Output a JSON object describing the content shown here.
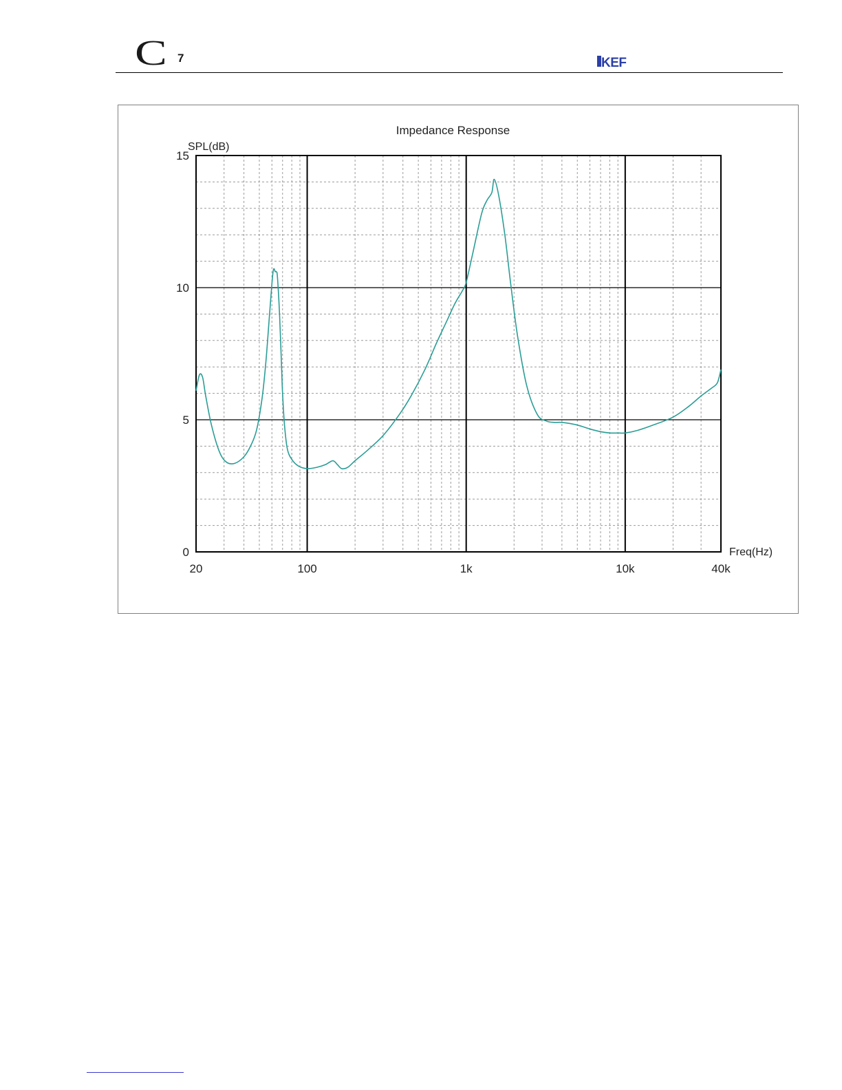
{
  "header": {
    "model_letter": "C",
    "model_number": "7",
    "brand": "KEF"
  },
  "colors": {
    "curve": "#2a9d96",
    "grid_major": "#000000",
    "grid_minor": "#9a9a9a"
  },
  "chart_data": {
    "type": "line",
    "title": "Impedance Response",
    "ylabel": "SPL(dB)",
    "xlabel": "Freq(Hz)",
    "xscale": "log",
    "xlim": [
      20,
      40000
    ],
    "ylim": [
      0,
      15
    ],
    "grid": true,
    "x_ticks": [
      {
        "value": 20,
        "label": "20"
      },
      {
        "value": 100,
        "label": "100"
      },
      {
        "value": 1000,
        "label": "1k"
      },
      {
        "value": 10000,
        "label": "10k"
      },
      {
        "value": 40000,
        "label": "40k"
      }
    ],
    "y_ticks": [
      {
        "value": 0,
        "label": "0"
      },
      {
        "value": 5,
        "label": "5"
      },
      {
        "value": 10,
        "label": "10"
      },
      {
        "value": 15,
        "label": "15"
      }
    ],
    "series": [
      {
        "x": [
          20,
          21,
          22,
          23,
          25,
          28,
          31,
          35,
          40,
          44,
          48,
          52,
          55,
          58,
          61,
          63,
          64,
          65,
          67,
          69,
          70,
          72,
          75,
          80,
          88,
          100,
          115,
          130,
          145,
          155,
          165,
          180,
          200,
          240,
          300,
          380,
          450,
          550,
          650,
          750,
          850,
          950,
          1000,
          1100,
          1250,
          1350,
          1450,
          1500,
          1600,
          1750,
          1900,
          2100,
          2400,
          2800,
          3200,
          3600,
          4000,
          5000,
          6000,
          7000,
          8000,
          9000,
          10000,
          12000,
          15000,
          20000,
          25000,
          30000,
          35000,
          38000,
          40000
        ],
        "y": [
          6.1,
          6.7,
          6.6,
          5.9,
          4.8,
          3.8,
          3.4,
          3.35,
          3.6,
          4.0,
          4.6,
          5.8,
          7.2,
          9.0,
          10.6,
          10.6,
          10.6,
          10.4,
          9.0,
          7.0,
          6.0,
          4.8,
          3.9,
          3.5,
          3.25,
          3.15,
          3.2,
          3.3,
          3.45,
          3.3,
          3.15,
          3.2,
          3.45,
          3.85,
          4.4,
          5.2,
          5.9,
          6.9,
          7.9,
          8.7,
          9.4,
          9.9,
          10.2,
          11.3,
          12.8,
          13.3,
          13.6,
          14.1,
          13.5,
          12.0,
          10.2,
          8.2,
          6.3,
          5.2,
          4.95,
          4.9,
          4.9,
          4.8,
          4.65,
          4.55,
          4.5,
          4.5,
          4.5,
          4.6,
          4.8,
          5.1,
          5.5,
          5.9,
          6.2,
          6.4,
          6.9
        ]
      }
    ]
  }
}
